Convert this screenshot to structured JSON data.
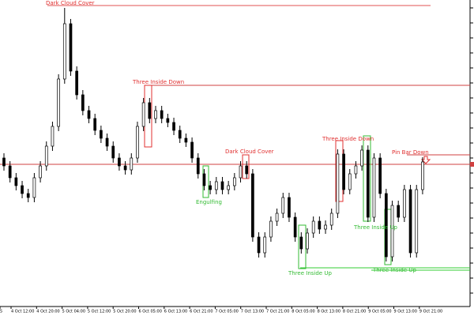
{
  "chart_data": {
    "type": "candlestick",
    "ylim": [
      15,
      400
    ],
    "x_labels": [
      "5",
      "4 Oct 12:00",
      "4 Oct 20:00",
      "5 Oct 04:00",
      "5 Oct 12:00",
      "5 Oct 20:00",
      "6 Oct 05:00",
      "6 Oct 13:00",
      "6 Oct 21:00",
      "7 Oct 05:00",
      "7 Oct 13:00",
      "7 Oct 21:00",
      "8 Oct 05:00",
      "8 Oct 13:00",
      "8 Oct 21:00",
      "9 Oct 05:00",
      "9 Oct 13:00",
      "9 Oct 21:00"
    ],
    "open": [
      200,
      190,
      175,
      165,
      155,
      150,
      175,
      190,
      215,
      240,
      300,
      370,
      310,
      280,
      260,
      250,
      235,
      225,
      215,
      200,
      190,
      185,
      200,
      240,
      270,
      250,
      260,
      250,
      245,
      235,
      225,
      220,
      200,
      180,
      165,
      160,
      170,
      160,
      165,
      175,
      190,
      180,
      100,
      80,
      100,
      120,
      130,
      150,
      125,
      100,
      85,
      105,
      120,
      110,
      115,
      130,
      205,
      160,
      180,
      190,
      210,
      125,
      200,
      155,
      75,
      140,
      125,
      160,
      80,
      160
    ],
    "high": [
      206,
      196,
      181,
      171,
      161,
      181,
      196,
      221,
      246,
      306,
      390,
      376,
      316,
      286,
      266,
      256,
      241,
      231,
      221,
      206,
      196,
      206,
      246,
      276,
      276,
      266,
      266,
      256,
      251,
      241,
      231,
      226,
      206,
      186,
      171,
      176,
      176,
      171,
      181,
      196,
      196,
      186,
      106,
      106,
      126,
      136,
      156,
      156,
      131,
      106,
      111,
      126,
      126,
      121,
      136,
      211,
      211,
      186,
      196,
      216,
      216,
      206,
      206,
      161,
      146,
      146,
      166,
      166,
      166,
      201
    ],
    "low": [
      184,
      169,
      159,
      149,
      144,
      144,
      169,
      184,
      209,
      234,
      294,
      304,
      274,
      254,
      244,
      229,
      219,
      209,
      194,
      184,
      179,
      179,
      194,
      234,
      244,
      244,
      244,
      239,
      229,
      219,
      214,
      194,
      174,
      159,
      154,
      154,
      154,
      154,
      159,
      169,
      174,
      94,
      74,
      74,
      94,
      114,
      124,
      119,
      94,
      79,
      79,
      99,
      104,
      104,
      109,
      124,
      154,
      154,
      174,
      184,
      119,
      119,
      149,
      69,
      69,
      119,
      119,
      74,
      74,
      154
    ],
    "close": [
      190,
      175,
      165,
      155,
      150,
      175,
      190,
      215,
      240,
      300,
      370,
      310,
      280,
      260,
      250,
      235,
      225,
      215,
      200,
      190,
      185,
      200,
      240,
      270,
      250,
      260,
      250,
      245,
      235,
      225,
      220,
      200,
      180,
      165,
      160,
      170,
      160,
      165,
      175,
      190,
      180,
      100,
      80,
      100,
      120,
      130,
      150,
      125,
      100,
      85,
      105,
      120,
      110,
      115,
      130,
      205,
      160,
      180,
      190,
      210,
      125,
      200,
      155,
      75,
      140,
      125,
      160,
      80,
      160,
      195
    ],
    "levels": [
      {
        "value": 393,
        "color": "#e05050"
      },
      {
        "value": 292,
        "color": "#d04040"
      },
      {
        "value": 192,
        "color": "#d04040"
      },
      {
        "value": 204,
        "color": "#d04040"
      },
      {
        "value": 61,
        "color": "#33cc33"
      },
      {
        "value": 58,
        "color": "#33cc33"
      }
    ],
    "annotations": [
      {
        "text": "Dark Cloud Cover",
        "color": "#e03030"
      },
      {
        "text": "Three Inside Down",
        "color": "#e03030"
      },
      {
        "text": "Dark Cloud Cover",
        "color": "#e03030"
      },
      {
        "text": "Three Inside Down",
        "color": "#e03030"
      },
      {
        "text": "Pin Bar Down",
        "color": "#e03030"
      },
      {
        "text": "Engulfing",
        "color": "#33bb33"
      },
      {
        "text": "Three Inside Up",
        "color": "#33bb33"
      },
      {
        "text": "Three Inside Up",
        "color": "#33bb33"
      },
      {
        "text": "Three Inside Up",
        "color": "#33bb33"
      }
    ]
  }
}
